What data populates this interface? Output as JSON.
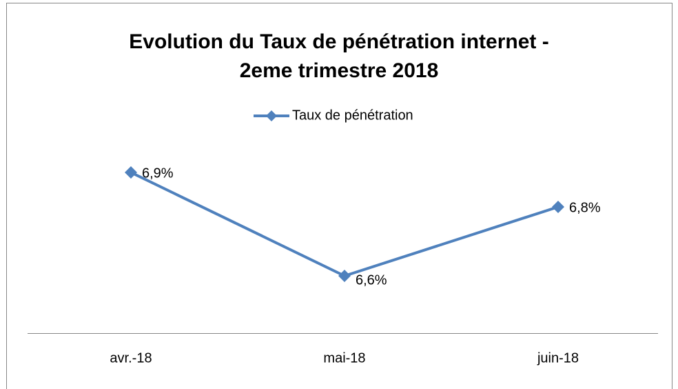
{
  "chart_data": {
    "type": "line",
    "title": [
      "Evolution du Taux de pénétration internet -",
      "2eme  trimestre 2018"
    ],
    "categories": [
      "avr.-18",
      "mai-18",
      "juin-18"
    ],
    "series": [
      {
        "name": "Taux de pénétration",
        "color": "#4f81bd",
        "values": [
          6.9,
          6.6,
          6.8
        ],
        "value_labels": [
          "6,9%",
          "6,6%",
          "6,8%"
        ]
      }
    ],
    "ylim": [
      6.45,
      7.0
    ],
    "legend": "top"
  }
}
